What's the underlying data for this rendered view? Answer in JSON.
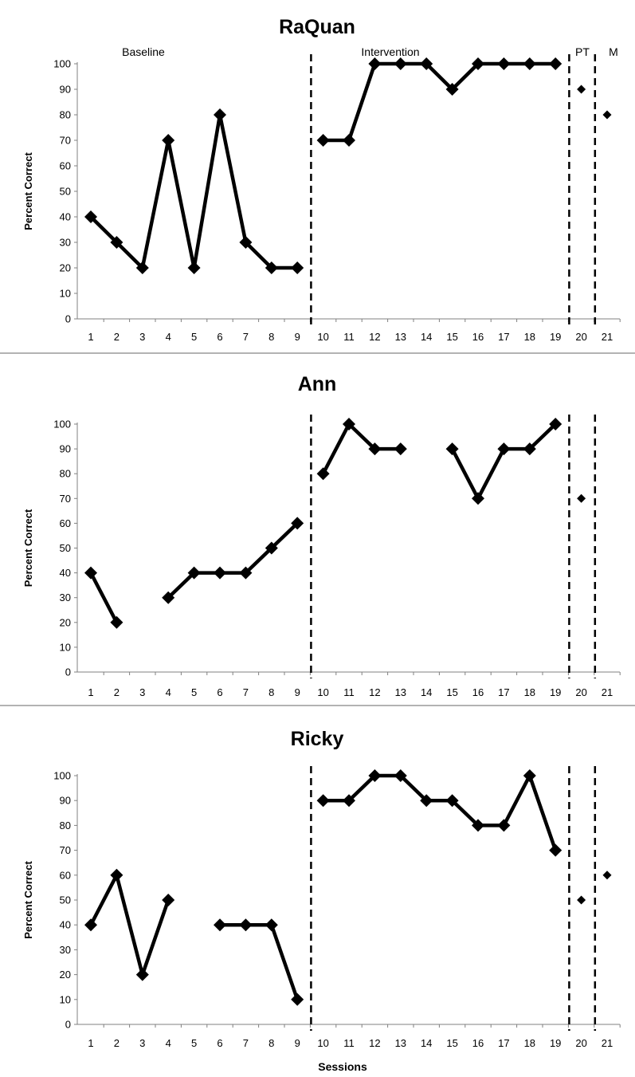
{
  "chart_data": [
    {
      "type": "line",
      "title": "RaQuan",
      "ylabel": "Percent Correct",
      "xlabel": "",
      "ylim": [
        0,
        100
      ],
      "yticks": [
        "0",
        "10",
        "20",
        "30",
        "40",
        "50",
        "60",
        "70",
        "80",
        "90",
        "100"
      ],
      "xticks": [
        "1",
        "2",
        "3",
        "4",
        "5",
        "6",
        "7",
        "8",
        "9",
        "10",
        "11",
        "12",
        "13",
        "14",
        "15",
        "16",
        "17",
        "18",
        "19",
        "20",
        "21"
      ],
      "phase_labels": [
        "Baseline",
        "Intervention",
        "PT",
        "M"
      ],
      "phase_change_after_sessions": [
        9,
        19,
        20
      ],
      "line_color": "#000000",
      "series": [
        {
          "x": [
            1,
            2,
            3,
            4,
            5,
            6,
            7,
            8,
            9
          ],
          "values": [
            40,
            30,
            20,
            70,
            20,
            80,
            30,
            20,
            20
          ]
        },
        {
          "x": [
            10,
            11,
            12,
            13,
            14,
            15,
            16,
            17,
            18,
            19
          ],
          "values": [
            70,
            70,
            100,
            100,
            100,
            90,
            100,
            100,
            100,
            100
          ]
        },
        {
          "x": [
            20
          ],
          "values": [
            90
          ]
        },
        {
          "x": [
            21
          ],
          "values": [
            80
          ]
        }
      ]
    },
    {
      "type": "line",
      "title": "Ann",
      "ylabel": "Percent Correct",
      "xlabel": "",
      "ylim": [
        0,
        100
      ],
      "yticks": [
        "0",
        "10",
        "20",
        "30",
        "40",
        "50",
        "60",
        "70",
        "80",
        "90",
        "100"
      ],
      "xticks": [
        "1",
        "2",
        "3",
        "4",
        "5",
        "6",
        "7",
        "8",
        "9",
        "10",
        "11",
        "12",
        "13",
        "14",
        "15",
        "16",
        "17",
        "18",
        "19",
        "20",
        "21"
      ],
      "phase_labels": [],
      "phase_change_after_sessions": [
        9,
        19,
        20
      ],
      "line_color": "#000000",
      "series": [
        {
          "x": [
            1,
            2
          ],
          "values": [
            40,
            20
          ]
        },
        {
          "x": [
            4,
            5,
            6,
            7,
            8,
            9
          ],
          "values": [
            30,
            40,
            40,
            40,
            50,
            60
          ]
        },
        {
          "x": [
            10,
            11,
            12,
            13
          ],
          "values": [
            80,
            100,
            90,
            90
          ]
        },
        {
          "x": [
            15,
            16,
            17,
            18,
            19
          ],
          "values": [
            90,
            70,
            90,
            90,
            100
          ]
        },
        {
          "x": [
            20
          ],
          "values": [
            70
          ]
        }
      ]
    },
    {
      "type": "line",
      "title": "Ricky",
      "ylabel": "Percent Correct",
      "xlabel": "Sessions",
      "ylim": [
        0,
        100
      ],
      "yticks": [
        "0",
        "10",
        "20",
        "30",
        "40",
        "50",
        "60",
        "70",
        "80",
        "90",
        "100"
      ],
      "xticks": [
        "1",
        "2",
        "3",
        "4",
        "5",
        "6",
        "7",
        "8",
        "9",
        "10",
        "11",
        "12",
        "13",
        "14",
        "15",
        "16",
        "17",
        "18",
        "19",
        "20",
        "21"
      ],
      "phase_labels": [],
      "phase_change_after_sessions": [
        9,
        19,
        20
      ],
      "line_color": "#000000",
      "series": [
        {
          "x": [
            1,
            2,
            3,
            4
          ],
          "values": [
            40,
            60,
            20,
            50
          ]
        },
        {
          "x": [
            6,
            7,
            8,
            9
          ],
          "values": [
            40,
            40,
            40,
            10
          ]
        },
        {
          "x": [
            10,
            11,
            12,
            13,
            14,
            15,
            16,
            17,
            18,
            19
          ],
          "values": [
            90,
            90,
            100,
            100,
            90,
            90,
            80,
            80,
            100,
            70
          ]
        },
        {
          "x": [
            20
          ],
          "values": [
            50
          ]
        },
        {
          "x": [
            21
          ],
          "values": [
            60
          ]
        }
      ]
    }
  ]
}
